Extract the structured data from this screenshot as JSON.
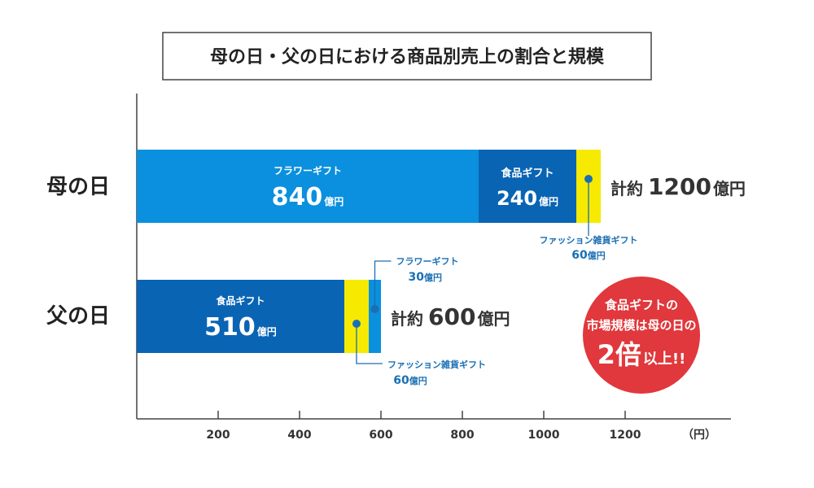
{
  "chart_data": {
    "type": "bar",
    "orientation": "horizontal",
    "stacked": true,
    "title": "母の日・父の日における商品別売上の割合と規模",
    "xlim": [
      0,
      1460
    ],
    "x_ticks": [
      200,
      400,
      600,
      800,
      1000,
      1200
    ],
    "x_unit": "（円）",
    "value_unit": "億円",
    "rows": [
      {
        "label": "母の日",
        "total_label": "計約",
        "total_value": "1200",
        "total_unit": "億円",
        "segments": [
          {
            "name": "フラワーギフト",
            "value": 840,
            "color": "#0a90de",
            "text_inside": true
          },
          {
            "name": "食品ギフト",
            "value": 240,
            "color": "#0a64b4",
            "text_inside": true
          },
          {
            "name": "ファッション雑貨ギフト",
            "value": 60,
            "color": "#f5ea00",
            "text_inside": false,
            "callout": "below"
          }
        ]
      },
      {
        "label": "父の日",
        "total_label": "計約",
        "total_value": "600",
        "total_unit": "億円",
        "segments": [
          {
            "name": "食品ギフト",
            "value": 510,
            "color": "#0a64b4",
            "text_inside": true
          },
          {
            "name": "ファッション雑貨ギフト",
            "value": 60,
            "color": "#f5ea00",
            "text_inside": false,
            "callout": "below"
          },
          {
            "name": "フラワーギフト",
            "value": 30,
            "color": "#0a90de",
            "text_inside": false,
            "callout": "above"
          }
        ]
      }
    ],
    "annotation": {
      "line1": "食品ギフトの",
      "line2": "市場規模は母の日の",
      "big": "2倍",
      "suffix": "以上!!",
      "color": "#e0383c"
    }
  }
}
